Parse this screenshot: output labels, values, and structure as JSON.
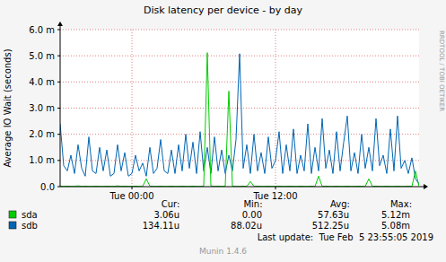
{
  "chart_data": {
    "type": "line",
    "title": "Disk latency per device - by day",
    "y_label": "Average IO Wait (seconds)",
    "side_label": "RRDTOOL / TOBI OETIKER",
    "footer": "Last update:  Tue Feb  5 23:55:05 2019",
    "credit": "Munin 1.4.6",
    "grid": true,
    "legend": "bottom",
    "ylim": [
      0,
      0.006
    ],
    "yticks": [
      {
        "value": 0,
        "label": "0.0"
      },
      {
        "value": 0.001,
        "label": "1.0 m"
      },
      {
        "value": 0.002,
        "label": "2.0 m"
      },
      {
        "value": 0.003,
        "label": "3.0 m"
      },
      {
        "value": 0.004,
        "label": "4.0 m"
      },
      {
        "value": 0.005,
        "label": "5.0 m"
      },
      {
        "value": 0.006,
        "label": "6.0 m"
      }
    ],
    "categories": [
      null,
      null,
      null,
      null,
      null,
      null,
      null,
      null,
      null,
      null,
      null,
      null,
      null,
      null,
      null,
      null,
      null,
      null,
      null,
      null,
      "Tue 00:00",
      null,
      null,
      null,
      null,
      null,
      null,
      null,
      null,
      null,
      null,
      null,
      null,
      null,
      null,
      null,
      null,
      null,
      null,
      null,
      null,
      null,
      null,
      null,
      null,
      null,
      null,
      null,
      null,
      null,
      null,
      null,
      null,
      null,
      null,
      null,
      null,
      null,
      null,
      null,
      "Tue 12:00",
      null,
      null,
      null,
      null,
      null,
      null,
      null,
      null,
      null,
      null,
      null,
      null,
      null,
      null,
      null,
      null,
      null,
      null,
      null,
      null,
      null,
      null,
      null,
      null,
      null,
      null,
      null,
      null,
      null,
      null,
      null,
      null,
      null,
      null,
      null,
      null,
      null,
      null,
      null,
      null
    ],
    "legend_stats": {
      "headers": [
        "Cur:",
        "Min:",
        "Avg:",
        "Max:"
      ],
      "rows": [
        [
          "3.06u",
          "0.00",
          "57.63u",
          "5.12m"
        ],
        [
          "134.11u",
          "88.02u",
          "512.25u",
          "5.08m"
        ]
      ]
    },
    "series": [
      {
        "name": "sda",
        "color": "#00cc00",
        "values": [
          2e-05,
          1e-05,
          2e-05,
          1e-05,
          1e-05,
          3e-05,
          1e-05,
          2e-05,
          1e-05,
          1e-05,
          2e-05,
          1e-05,
          1e-05,
          2e-05,
          1e-05,
          1e-05,
          3e-05,
          1e-05,
          2e-05,
          1e-05,
          1e-05,
          2e-05,
          1e-05,
          1e-05,
          0.0003,
          2e-05,
          1e-05,
          1e-05,
          2e-05,
          1e-05,
          1e-05,
          2e-05,
          1e-05,
          1e-05,
          2e-05,
          1e-05,
          1e-05,
          2e-05,
          1e-05,
          1e-05,
          2e-05,
          0.00512,
          3e-05,
          1e-05,
          2e-05,
          1e-05,
          2e-05,
          0.00365,
          2e-05,
          1e-05,
          1e-05,
          2e-05,
          1e-05,
          0.0002,
          1e-05,
          2e-05,
          1e-05,
          1e-05,
          2e-05,
          1e-05,
          1e-05,
          2e-05,
          1e-05,
          1e-05,
          2e-05,
          1e-05,
          1e-05,
          2e-05,
          1e-05,
          1e-05,
          2e-05,
          1e-05,
          0.0004,
          1e-05,
          2e-05,
          1e-05,
          1e-05,
          2e-05,
          1e-05,
          1e-05,
          2e-05,
          1e-05,
          1e-05,
          2e-05,
          1e-05,
          1e-05,
          0.0003,
          1e-05,
          2e-05,
          1e-05,
          1e-05,
          2e-05,
          1e-05,
          1e-05,
          2e-05,
          1e-05,
          1e-05,
          2e-05,
          1e-05,
          0.0006,
          1e-05
        ]
      },
      {
        "name": "sdb",
        "color": "#0066b3",
        "values": [
          0.0024,
          0.0008,
          0.0006,
          0.0012,
          0.0005,
          0.0016,
          0.0007,
          0.0004,
          0.0019,
          0.0006,
          0.0005,
          0.0015,
          0.0006,
          0.0014,
          0.0004,
          0.0005,
          0.0016,
          0.0006,
          0.0013,
          0.0004,
          0.0005,
          0.0012,
          0.0006,
          0.0009,
          0.0004,
          0.0015,
          0.0005,
          0.0007,
          0.0018,
          0.0006,
          0.0005,
          0.0014,
          0.0005,
          0.0016,
          0.0006,
          0.002,
          0.0007,
          0.0017,
          0.0005,
          0.0021,
          0.0006,
          0.0015,
          0.0005,
          0.0019,
          0.0006,
          0.0014,
          0.0005,
          0.0012,
          0.0006,
          0.0018,
          0.00508,
          0.0007,
          0.0016,
          0.0005,
          0.002,
          0.0006,
          0.0013,
          0.0005,
          0.0019,
          0.0007,
          0.001,
          0.0021,
          0.0005,
          0.0016,
          0.0006,
          0.0022,
          0.0005,
          0.0012,
          0.0006,
          0.0024,
          0.0005,
          0.0015,
          0.0006,
          0.0026,
          0.0007,
          0.0014,
          0.0005,
          0.0021,
          0.0006,
          0.0017,
          0.0027,
          0.0006,
          0.0013,
          0.0005,
          0.002,
          0.0007,
          0.0015,
          0.0006,
          0.0026,
          0.0008,
          0.0012,
          0.0005,
          0.0022,
          0.0006,
          0.0027,
          0.0007,
          0.001,
          0.0005,
          0.0011,
          0.0003,
          0.0001
        ]
      }
    ]
  }
}
